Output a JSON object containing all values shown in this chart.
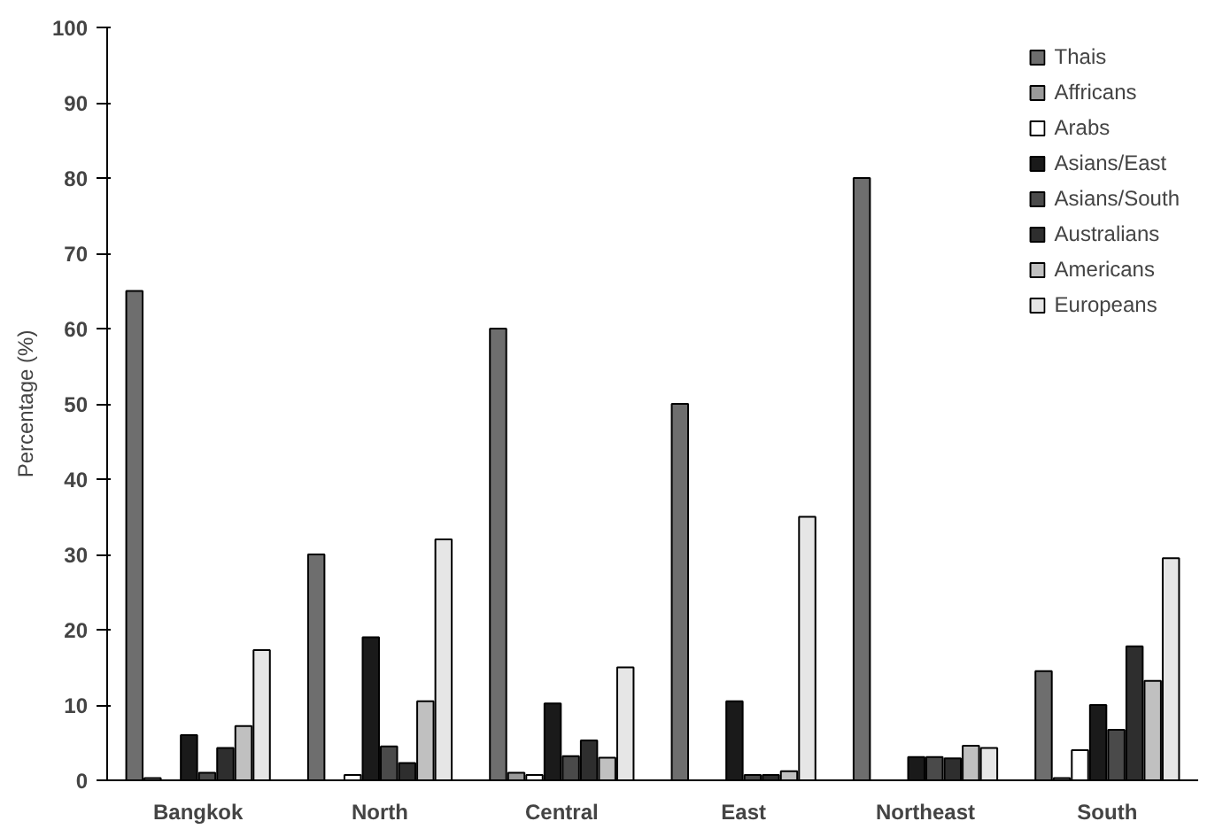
{
  "chart_data": {
    "type": "bar",
    "ylabel": "Percentage (%)",
    "categories": [
      "Bangkok",
      "North",
      "Central",
      "East",
      "Northeast",
      "South"
    ],
    "series": [
      {
        "name": "Thais",
        "color": "#6e6e6e",
        "values": [
          65,
          30,
          60,
          50,
          80,
          14.5
        ]
      },
      {
        "name": "Affricans",
        "color": "#9a9a9a",
        "values": [
          0.3,
          null,
          1,
          null,
          null,
          0.3
        ]
      },
      {
        "name": "Arabs",
        "color": "#ffffff",
        "values": [
          null,
          0.7,
          0.7,
          null,
          null,
          4
        ]
      },
      {
        "name": "Asians/East",
        "color": "#1a1a1a",
        "values": [
          6,
          19,
          10.2,
          10.5,
          3.1,
          10
        ]
      },
      {
        "name": "Asians/South",
        "color": "#4a4a4a",
        "values": [
          1,
          4.5,
          3.2,
          0.7,
          3.1,
          6.7
        ]
      },
      {
        "name": "Australians",
        "color": "#2e2e2e",
        "values": [
          4.3,
          2.3,
          5.3,
          0.7,
          2.9,
          17.8
        ]
      },
      {
        "name": "Americans",
        "color": "#c0c0c0",
        "values": [
          7.2,
          10.5,
          3,
          1.2,
          4.6,
          13.2
        ]
      },
      {
        "name": "Europeans",
        "color": "#e6e6e6",
        "values": [
          17.3,
          32,
          15,
          35,
          4.3,
          29.5
        ]
      }
    ],
    "ylim": [
      0,
      100
    ],
    "yticks": [
      0,
      10,
      20,
      30,
      40,
      50,
      60,
      70,
      80,
      90,
      100
    ],
    "grid": false,
    "legend": "top right"
  }
}
